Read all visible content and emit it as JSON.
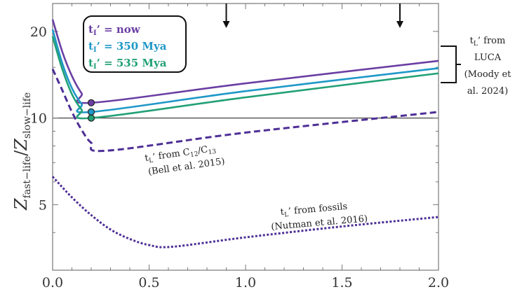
{
  "chart_data": {
    "type": "line",
    "xlabel": "",
    "ylabel": "Z_fast-life / Z_slow-life",
    "ylabel_parts": {
      "num": "Z",
      "num_sub": "fast−life",
      "slash": "/",
      "den": "Z",
      "den_sub": "slow−life"
    },
    "xlim": [
      0,
      2.0
    ],
    "ylim": [
      2.96,
      25
    ],
    "yscale": "log",
    "xticks": [
      0.0,
      0.5,
      1.0,
      1.5,
      2.0
    ],
    "xtick_labels": [
      "0.0",
      "0.5",
      "1.0",
      "1.5",
      "2.0"
    ],
    "yticks": [
      5,
      10,
      20
    ],
    "ytick_labels": [
      "5",
      "10",
      "20"
    ],
    "reference_line_y": 10,
    "arrows_x": [
      0.9,
      1.8
    ],
    "legend": {
      "placement": "top-left",
      "entries": [
        {
          "prefix": "t",
          "sub": "I",
          "text": "’ = now",
          "color": "#6a3fa3"
        },
        {
          "prefix": "t",
          "sub": "I",
          "text": "’ = 350 Mya",
          "color": "#1f98c8"
        },
        {
          "prefix": "t",
          "sub": "I",
          "text": "’ = 535 Mya",
          "color": "#22a077"
        }
      ]
    },
    "series": [
      {
        "style": "solid",
        "color": "#6a3fa3",
        "marker_x": 0.2,
        "x": [
          0,
          0.05,
          0.1,
          0.15,
          0.2,
          1.0,
          2.0
        ],
        "y": [
          22,
          17,
          14,
          12.2,
          11.3,
          13.2,
          15.8
        ]
      },
      {
        "style": "solid",
        "color": "#1f98c8",
        "marker_x": 0.2,
        "x": [
          0,
          0.05,
          0.1,
          0.15,
          0.2,
          1.0,
          2.0
        ],
        "y": [
          20.3,
          15.5,
          12.7,
          11.2,
          10.5,
          12.4,
          14.9
        ]
      },
      {
        "style": "solid",
        "color": "#22a077",
        "marker_x": 0.2,
        "x": [
          0,
          0.05,
          0.1,
          0.15,
          0.2,
          1.0,
          2.0
        ],
        "y": [
          19.2,
          14.8,
          12.1,
          10.7,
          10.0,
          11.8,
          14.3
        ]
      },
      {
        "style": "dashed",
        "color": "#4e2f96",
        "x": [
          0,
          0.05,
          0.1,
          0.15,
          0.2,
          0.28,
          1.0,
          2.0
        ],
        "y": [
          14.8,
          12.5,
          10.5,
          9.1,
          8.2,
          7.7,
          8.9,
          10.5
        ]
      },
      {
        "style": "dotted",
        "color": "#4e2f96",
        "x": [
          0,
          0.1,
          0.2,
          0.3,
          0.4,
          0.5,
          0.62,
          1.0,
          1.5,
          2.0
        ],
        "y": [
          6.26,
          5.3,
          4.6,
          4.1,
          3.8,
          3.62,
          3.57,
          3.85,
          4.2,
          4.53
        ]
      }
    ],
    "annotations": {
      "c12": {
        "l1_pre": "t",
        "l1_sub": "L",
        "l1_mid": "’ from C",
        "l1_s1": "12",
        "l1_slash": "/C",
        "l1_s2": "13",
        "l2": "(Bell et al. 2015)"
      },
      "fossils": {
        "l1_pre": "t",
        "l1_sub": "L",
        "l1_post": "’ from fossils",
        "l2": "(Nutman et al. 2016)"
      },
      "luca": {
        "l1_pre": "t",
        "l1_sub": "L",
        "l1_post": "’ from",
        "l2": "LUCA",
        "l3": "(Moody et",
        "l4": "al. 2024)"
      }
    }
  }
}
